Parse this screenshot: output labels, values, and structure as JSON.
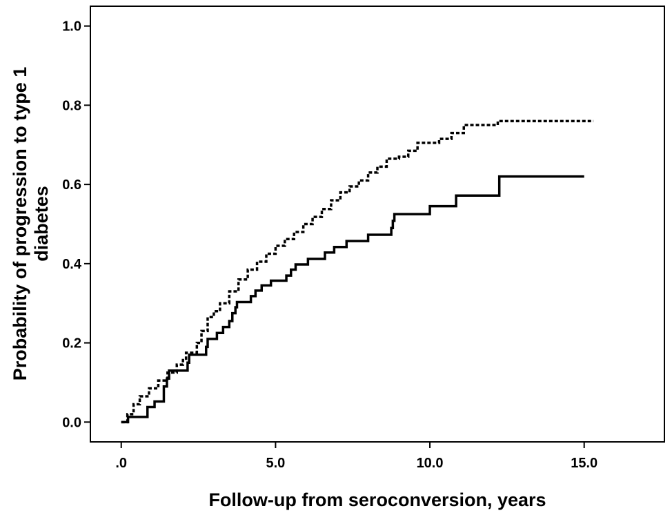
{
  "chart_data": {
    "type": "line",
    "step": true,
    "title": "",
    "xlabel": "Follow-up from seroconversion, years",
    "ylabel_lines": [
      "Probability of progression to type 1",
      "diabetes"
    ],
    "xlim": [
      -1.0,
      17.6
    ],
    "ylim": [
      -0.05,
      1.05
    ],
    "x_ticks": [
      0,
      5,
      10,
      15
    ],
    "x_tick_labels": [
      ".0",
      "5.0",
      "10.0",
      "15.0"
    ],
    "y_ticks": [
      0.0,
      0.2,
      0.4,
      0.6,
      0.8,
      1.0
    ],
    "y_tick_labels": [
      "0.0",
      "0.2",
      "0.4",
      "0.6",
      "0.8",
      "1.0"
    ],
    "grid": false,
    "legend": "none",
    "series": [
      {
        "style": "solid",
        "color": "#000000",
        "points": [
          [
            0.0,
            0.0
          ],
          [
            0.22,
            0.013
          ],
          [
            0.85,
            0.038
          ],
          [
            1.08,
            0.052
          ],
          [
            1.38,
            0.09
          ],
          [
            1.48,
            0.11
          ],
          [
            1.55,
            0.13
          ],
          [
            2.15,
            0.15
          ],
          [
            2.2,
            0.17
          ],
          [
            2.75,
            0.19
          ],
          [
            2.8,
            0.21
          ],
          [
            3.1,
            0.225
          ],
          [
            3.3,
            0.24
          ],
          [
            3.5,
            0.255
          ],
          [
            3.6,
            0.275
          ],
          [
            3.7,
            0.29
          ],
          [
            3.75,
            0.303
          ],
          [
            4.2,
            0.318
          ],
          [
            4.35,
            0.332
          ],
          [
            4.55,
            0.345
          ],
          [
            4.85,
            0.357
          ],
          [
            5.35,
            0.37
          ],
          [
            5.5,
            0.385
          ],
          [
            5.65,
            0.398
          ],
          [
            6.05,
            0.412
          ],
          [
            6.6,
            0.428
          ],
          [
            6.9,
            0.442
          ],
          [
            7.3,
            0.457
          ],
          [
            8.0,
            0.473
          ],
          [
            8.75,
            0.49
          ],
          [
            8.8,
            0.508
          ],
          [
            8.85,
            0.525
          ],
          [
            10.0,
            0.545
          ],
          [
            10.85,
            0.572
          ],
          [
            12.25,
            0.62
          ],
          [
            15.0,
            0.62
          ]
        ]
      },
      {
        "style": "dotted",
        "color": "#000000",
        "points": [
          [
            0.0,
            0.0
          ],
          [
            0.2,
            0.02
          ],
          [
            0.4,
            0.045
          ],
          [
            0.6,
            0.065
          ],
          [
            0.9,
            0.085
          ],
          [
            1.2,
            0.105
          ],
          [
            1.5,
            0.125
          ],
          [
            1.8,
            0.145
          ],
          [
            2.0,
            0.16
          ],
          [
            2.1,
            0.175
          ],
          [
            2.3,
            0.175
          ],
          [
            2.45,
            0.2
          ],
          [
            2.6,
            0.23
          ],
          [
            2.8,
            0.265
          ],
          [
            3.0,
            0.28
          ],
          [
            3.2,
            0.3
          ],
          [
            3.5,
            0.33
          ],
          [
            3.8,
            0.36
          ],
          [
            4.1,
            0.385
          ],
          [
            4.4,
            0.405
          ],
          [
            4.7,
            0.425
          ],
          [
            5.0,
            0.445
          ],
          [
            5.3,
            0.462
          ],
          [
            5.6,
            0.48
          ],
          [
            5.9,
            0.5
          ],
          [
            6.2,
            0.518
          ],
          [
            6.5,
            0.538
          ],
          [
            6.8,
            0.56
          ],
          [
            7.1,
            0.58
          ],
          [
            7.4,
            0.595
          ],
          [
            7.7,
            0.61
          ],
          [
            8.0,
            0.63
          ],
          [
            8.3,
            0.645
          ],
          [
            8.6,
            0.665
          ],
          [
            9.0,
            0.67
          ],
          [
            9.3,
            0.685
          ],
          [
            9.6,
            0.705
          ],
          [
            10.0,
            0.705
          ],
          [
            10.3,
            0.715
          ],
          [
            10.7,
            0.73
          ],
          [
            11.1,
            0.75
          ],
          [
            11.6,
            0.75
          ],
          [
            12.2,
            0.76
          ],
          [
            15.3,
            0.76
          ]
        ]
      }
    ]
  }
}
